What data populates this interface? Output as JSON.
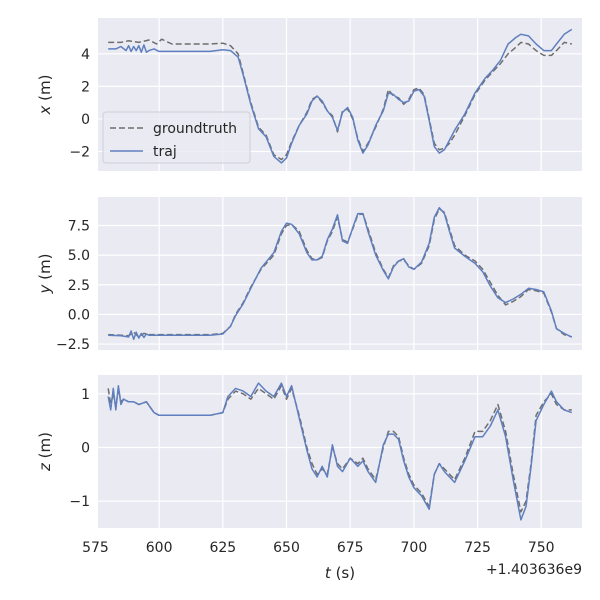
{
  "chart_data": [
    {
      "type": "line",
      "ylabel_var": "x",
      "ylabel_unit": " (m)",
      "xlim": [
        576,
        766
      ],
      "ylim": [
        -3.2,
        6.2
      ],
      "yticks": [
        -2,
        0,
        2,
        4
      ],
      "grid": true,
      "legend": "left",
      "series": [
        {
          "name": "groundtruth",
          "color": "#6e6e6e",
          "dash": true,
          "x": [
            580,
            585,
            588,
            592,
            596,
            599,
            601,
            605,
            610,
            615,
            620,
            625,
            628,
            631,
            633,
            636,
            639,
            642,
            645,
            648,
            650,
            652,
            655,
            658,
            660,
            662,
            664,
            666,
            668,
            670,
            672,
            674,
            676,
            678,
            680,
            682,
            685,
            688,
            690,
            692,
            694,
            696,
            698,
            700,
            702,
            704,
            706,
            708,
            710,
            712,
            714,
            716,
            720,
            724,
            728,
            731,
            734,
            737,
            740,
            742,
            745,
            748,
            751,
            754,
            756,
            759,
            762
          ],
          "y": [
            4.7,
            4.7,
            4.8,
            4.7,
            4.85,
            4.6,
            4.9,
            4.6,
            4.6,
            4.6,
            4.6,
            4.65,
            4.5,
            4.0,
            2.8,
            1.0,
            -0.5,
            -1.0,
            -2.2,
            -2.5,
            -2.2,
            -1.4,
            -0.4,
            0.4,
            1.2,
            1.4,
            1.0,
            0.5,
            0.2,
            -0.8,
            0.5,
            0.6,
            0.0,
            -1.2,
            -2.0,
            -1.5,
            -0.5,
            0.6,
            1.8,
            1.4,
            1.3,
            0.9,
            1.2,
            1.8,
            1.9,
            1.5,
            0.0,
            -1.5,
            -1.9,
            -1.8,
            -1.5,
            -1.0,
            0.2,
            1.5,
            2.4,
            2.9,
            3.4,
            4.0,
            4.4,
            4.7,
            4.6,
            4.2,
            3.9,
            3.9,
            4.2,
            4.7,
            4.6
          ]
        },
        {
          "name": "traj",
          "color": "#5f7fbf",
          "dash": false,
          "x": [
            580,
            583,
            585,
            587,
            588,
            589,
            590,
            591,
            592,
            593,
            594,
            595,
            596,
            598,
            600,
            605,
            610,
            615,
            620,
            625,
            628,
            631,
            633,
            636,
            639,
            642,
            645,
            648,
            650,
            652,
            655,
            658,
            660,
            662,
            664,
            666,
            668,
            670,
            672,
            674,
            676,
            678,
            680,
            682,
            685,
            688,
            690,
            692,
            694,
            696,
            698,
            700,
            702,
            704,
            706,
            708,
            710,
            712,
            714,
            716,
            720,
            724,
            728,
            731,
            734,
            737,
            740,
            742,
            745,
            748,
            751,
            754,
            756,
            759,
            762
          ],
          "y": [
            4.3,
            4.3,
            4.45,
            4.2,
            4.5,
            4.15,
            4.45,
            4.2,
            4.5,
            4.1,
            4.55,
            4.1,
            4.2,
            4.3,
            4.15,
            4.15,
            4.15,
            4.15,
            4.15,
            4.25,
            4.2,
            3.8,
            2.7,
            0.9,
            -0.6,
            -1.1,
            -2.3,
            -2.7,
            -2.4,
            -1.5,
            -0.4,
            0.3,
            1.1,
            1.4,
            1.1,
            0.5,
            0.1,
            -0.7,
            0.4,
            0.7,
            0.1,
            -1.3,
            -2.1,
            -1.6,
            -0.4,
            0.5,
            1.6,
            1.5,
            1.2,
            1.0,
            1.1,
            1.7,
            1.8,
            1.4,
            -0.1,
            -1.7,
            -2.1,
            -1.9,
            -1.3,
            -0.7,
            0.3,
            1.6,
            2.5,
            3.0,
            3.6,
            4.6,
            5.0,
            5.2,
            5.1,
            4.6,
            4.2,
            4.2,
            4.6,
            5.2,
            5.5
          ]
        }
      ]
    },
    {
      "type": "line",
      "ylabel_var": "y",
      "ylabel_unit": " (m)",
      "xlim": [
        576,
        766
      ],
      "ylim": [
        -3.0,
        9.9
      ],
      "yticks": [
        -2.5,
        0.0,
        2.5,
        5.0,
        7.5
      ],
      "ytick_labels": [
        "−2.5",
        "0.0",
        "2.5",
        "5.0",
        "7.5"
      ],
      "grid": true,
      "series": [
        {
          "name": "groundtruth",
          "color": "#6e6e6e",
          "dash": true,
          "x": [
            580,
            585,
            588,
            590,
            592,
            594,
            596,
            600,
            610,
            620,
            625,
            628,
            630,
            633,
            636,
            640,
            645,
            648,
            650,
            652,
            655,
            658,
            660,
            662,
            664,
            666,
            668,
            670,
            672,
            674,
            676,
            678,
            680,
            682,
            685,
            688,
            690,
            692,
            694,
            696,
            698,
            700,
            703,
            706,
            708,
            710,
            712,
            714,
            716,
            720,
            724,
            727,
            730,
            733,
            736,
            739,
            742,
            745,
            748,
            751,
            754,
            756,
            759,
            762
          ],
          "y": [
            -1.7,
            -1.75,
            -1.8,
            -1.5,
            -1.9,
            -1.6,
            -1.7,
            -1.7,
            -1.7,
            -1.7,
            -1.6,
            -1.0,
            0.0,
            1.0,
            2.3,
            3.8,
            5.0,
            6.8,
            7.5,
            7.6,
            7.0,
            5.4,
            4.7,
            4.6,
            4.8,
            6.2,
            7.0,
            8.2,
            6.3,
            6.1,
            7.2,
            8.4,
            8.5,
            7.2,
            5.2,
            3.8,
            3.1,
            4.1,
            4.5,
            4.6,
            4.1,
            3.8,
            4.3,
            5.8,
            8.0,
            8.9,
            8.6,
            7.2,
            5.8,
            5.0,
            4.5,
            3.8,
            2.7,
            1.6,
            0.8,
            1.1,
            1.5,
            2.1,
            2.0,
            1.8,
            0.2,
            -1.2,
            -1.7,
            -1.9
          ]
        },
        {
          "name": "traj",
          "color": "#5f7fbf",
          "dash": false,
          "x": [
            580,
            585,
            588,
            589,
            590,
            591,
            592,
            593,
            594,
            595,
            596,
            600,
            610,
            620,
            625,
            628,
            630,
            633,
            636,
            640,
            645,
            648,
            650,
            652,
            655,
            658,
            660,
            662,
            664,
            666,
            668,
            670,
            672,
            674,
            676,
            678,
            680,
            682,
            685,
            688,
            690,
            692,
            694,
            696,
            698,
            700,
            703,
            706,
            708,
            710,
            712,
            714,
            716,
            720,
            724,
            727,
            730,
            733,
            736,
            739,
            742,
            745,
            748,
            751,
            754,
            756,
            759,
            762
          ],
          "y": [
            -1.75,
            -1.8,
            -1.9,
            -1.4,
            -2.1,
            -1.5,
            -2.0,
            -1.6,
            -1.95,
            -1.65,
            -1.75,
            -1.75,
            -1.75,
            -1.75,
            -1.65,
            -1.0,
            -0.1,
            0.9,
            2.2,
            3.9,
            5.2,
            7.0,
            7.7,
            7.6,
            6.8,
            5.2,
            4.6,
            4.6,
            4.9,
            6.3,
            7.2,
            8.4,
            6.2,
            6.0,
            7.3,
            8.5,
            8.5,
            7.0,
            5.0,
            3.7,
            3.0,
            4.0,
            4.5,
            4.7,
            4.0,
            3.8,
            4.4,
            6.0,
            8.2,
            9.0,
            8.5,
            7.0,
            5.6,
            4.9,
            4.3,
            3.6,
            2.4,
            1.4,
            1.0,
            1.3,
            1.7,
            2.2,
            2.1,
            1.9,
            0.3,
            -1.2,
            -1.6,
            -1.9
          ]
        }
      ]
    },
    {
      "type": "line",
      "ylabel_var": "z",
      "ylabel_unit": " (m)",
      "xlim": [
        576,
        766
      ],
      "ylim": [
        -1.5,
        1.35
      ],
      "yticks": [
        -1,
        0,
        1
      ],
      "ytick_labels": [
        "−1",
        "0",
        "1"
      ],
      "xticks": [
        575,
        600,
        625,
        650,
        675,
        700,
        725,
        750
      ],
      "xlabel_var": "t",
      "xlabel_unit": " (s)",
      "offset_text": "+1.403636e9",
      "grid": true,
      "series": [
        {
          "name": "groundtruth",
          "color": "#6e6e6e",
          "dash": true,
          "x": [
            580,
            581,
            582,
            583,
            584,
            585,
            586,
            588,
            590,
            592,
            595,
            598,
            600,
            605,
            610,
            615,
            620,
            625,
            627,
            630,
            633,
            636,
            639,
            642,
            645,
            648,
            650,
            652,
            655,
            658,
            660,
            662,
            664,
            666,
            668,
            670,
            672,
            675,
            678,
            680,
            682,
            685,
            688,
            690,
            692,
            694,
            696,
            698,
            700,
            703,
            706,
            708,
            710,
            712,
            714,
            716,
            720,
            724,
            727,
            730,
            733,
            736,
            739,
            742,
            744,
            746,
            748,
            751,
            754,
            756,
            759,
            762
          ],
          "y": [
            1.1,
            0.8,
            1.0,
            0.75,
            1.1,
            0.85,
            0.9,
            0.85,
            0.85,
            0.8,
            0.85,
            0.65,
            0.6,
            0.6,
            0.6,
            0.6,
            0.6,
            0.65,
            0.9,
            1.05,
            1.0,
            0.9,
            1.1,
            1.0,
            0.9,
            1.15,
            0.9,
            1.1,
            0.6,
            0.0,
            -0.3,
            -0.5,
            -0.4,
            -0.5,
            0.0,
            -0.3,
            -0.4,
            -0.2,
            -0.3,
            -0.2,
            -0.4,
            -0.6,
            0.0,
            0.3,
            0.3,
            0.2,
            -0.2,
            -0.5,
            -0.7,
            -0.85,
            -1.1,
            -0.5,
            -0.3,
            -0.4,
            -0.5,
            -0.6,
            -0.2,
            0.3,
            0.3,
            0.5,
            0.8,
            0.3,
            -0.5,
            -1.2,
            -1.0,
            -0.3,
            0.6,
            0.85,
            1.0,
            0.8,
            0.7,
            0.7
          ]
        },
        {
          "name": "traj",
          "color": "#5f7fbf",
          "dash": false,
          "x": [
            580,
            581,
            582,
            583,
            584,
            585,
            586,
            588,
            590,
            592,
            595,
            598,
            600,
            605,
            610,
            615,
            620,
            625,
            627,
            630,
            633,
            636,
            639,
            642,
            645,
            648,
            650,
            652,
            655,
            658,
            660,
            662,
            664,
            666,
            668,
            670,
            672,
            675,
            678,
            680,
            682,
            685,
            688,
            690,
            692,
            694,
            696,
            698,
            700,
            703,
            706,
            708,
            710,
            712,
            714,
            716,
            720,
            724,
            727,
            730,
            733,
            736,
            739,
            742,
            744,
            746,
            748,
            751,
            754,
            756,
            759,
            762
          ],
          "y": [
            0.95,
            0.7,
            1.1,
            0.7,
            1.15,
            0.8,
            0.9,
            0.85,
            0.85,
            0.8,
            0.85,
            0.65,
            0.6,
            0.6,
            0.6,
            0.6,
            0.6,
            0.65,
            0.95,
            1.1,
            1.05,
            0.95,
            1.2,
            1.05,
            0.95,
            1.2,
            0.95,
            1.15,
            0.55,
            -0.05,
            -0.4,
            -0.55,
            -0.35,
            -0.55,
            0.05,
            -0.35,
            -0.45,
            -0.2,
            -0.35,
            -0.25,
            -0.45,
            -0.65,
            0.05,
            0.25,
            0.25,
            0.15,
            -0.25,
            -0.55,
            -0.75,
            -0.9,
            -1.15,
            -0.5,
            -0.3,
            -0.45,
            -0.55,
            -0.65,
            -0.25,
            0.2,
            0.2,
            0.4,
            0.7,
            0.2,
            -0.6,
            -1.35,
            -1.1,
            -0.35,
            0.5,
            0.8,
            1.05,
            0.85,
            0.7,
            0.65
          ]
        }
      ]
    }
  ]
}
